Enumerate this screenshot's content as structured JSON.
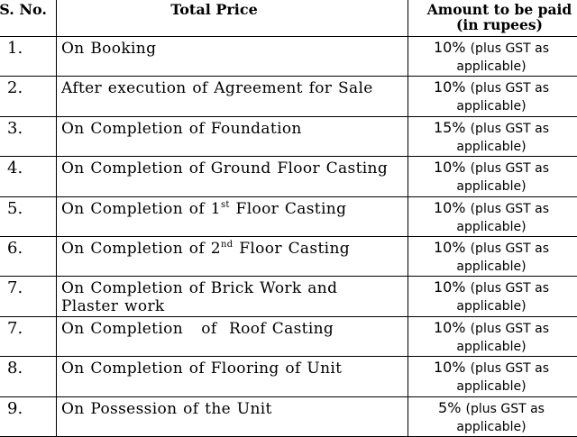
{
  "table": {
    "headers": {
      "sno": "S. No.",
      "price": "Total Price",
      "amount_line1": "Amount to be paid",
      "amount_line2": "(in rupees)"
    },
    "rows": [
      {
        "no": "1.",
        "desc": "On  Booking",
        "pct": "10%",
        "note_a": "(plus GST as",
        "note_b": "applicable)"
      },
      {
        "no": "2.",
        "desc": "After execution of Agreement for Sale",
        "pct": "10%",
        "note_a": "(plus GST as",
        "note_b": "applicable)"
      },
      {
        "no": "3.",
        "desc": "On Completion of Foundation",
        "pct": "15%",
        "note_a": "(plus GST as",
        "note_b": "applicable)"
      },
      {
        "no": "4.",
        "desc": "On Completion of Ground Floor Casting",
        "pct": "10%",
        "note_a": "(plus GST as",
        "note_b": "applicable)"
      },
      {
        "no": "5.",
        "desc_pre": "On Completion of 1",
        "desc_sup": "st",
        "desc_post": " Floor Casting",
        "pct": "10%",
        "note_a": "(plus GST as",
        "note_b": "applicable)"
      },
      {
        "no": "6.",
        "desc_pre": "On Completion of 2",
        "desc_sup": "nd",
        "desc_post": " Floor  Casting",
        "pct": "10%",
        "note_a": "(plus GST as",
        "note_b": "applicable)"
      },
      {
        "no": "7.",
        "desc_a": "On Completion of Brick Work and",
        "desc_b": "Plaster work",
        "pct": "10%",
        "note_a": "(plus GST as",
        "note_b": "applicable)"
      },
      {
        "no": "7.",
        "desc": "On Completion   of  Roof Casting",
        "pct": "10%",
        "note_a": "(plus GST as",
        "note_b": "applicable)"
      },
      {
        "no": "8.",
        "desc": "On Completion of Flooring of Unit",
        "pct": "10%",
        "note_a": "(plus GST as",
        "note_b": "applicable)"
      },
      {
        "no": "9.",
        "desc": "On Possession of the Unit",
        "pct": "5%",
        "note_a": "(plus GST as",
        "note_b": "applicable)"
      }
    ]
  }
}
